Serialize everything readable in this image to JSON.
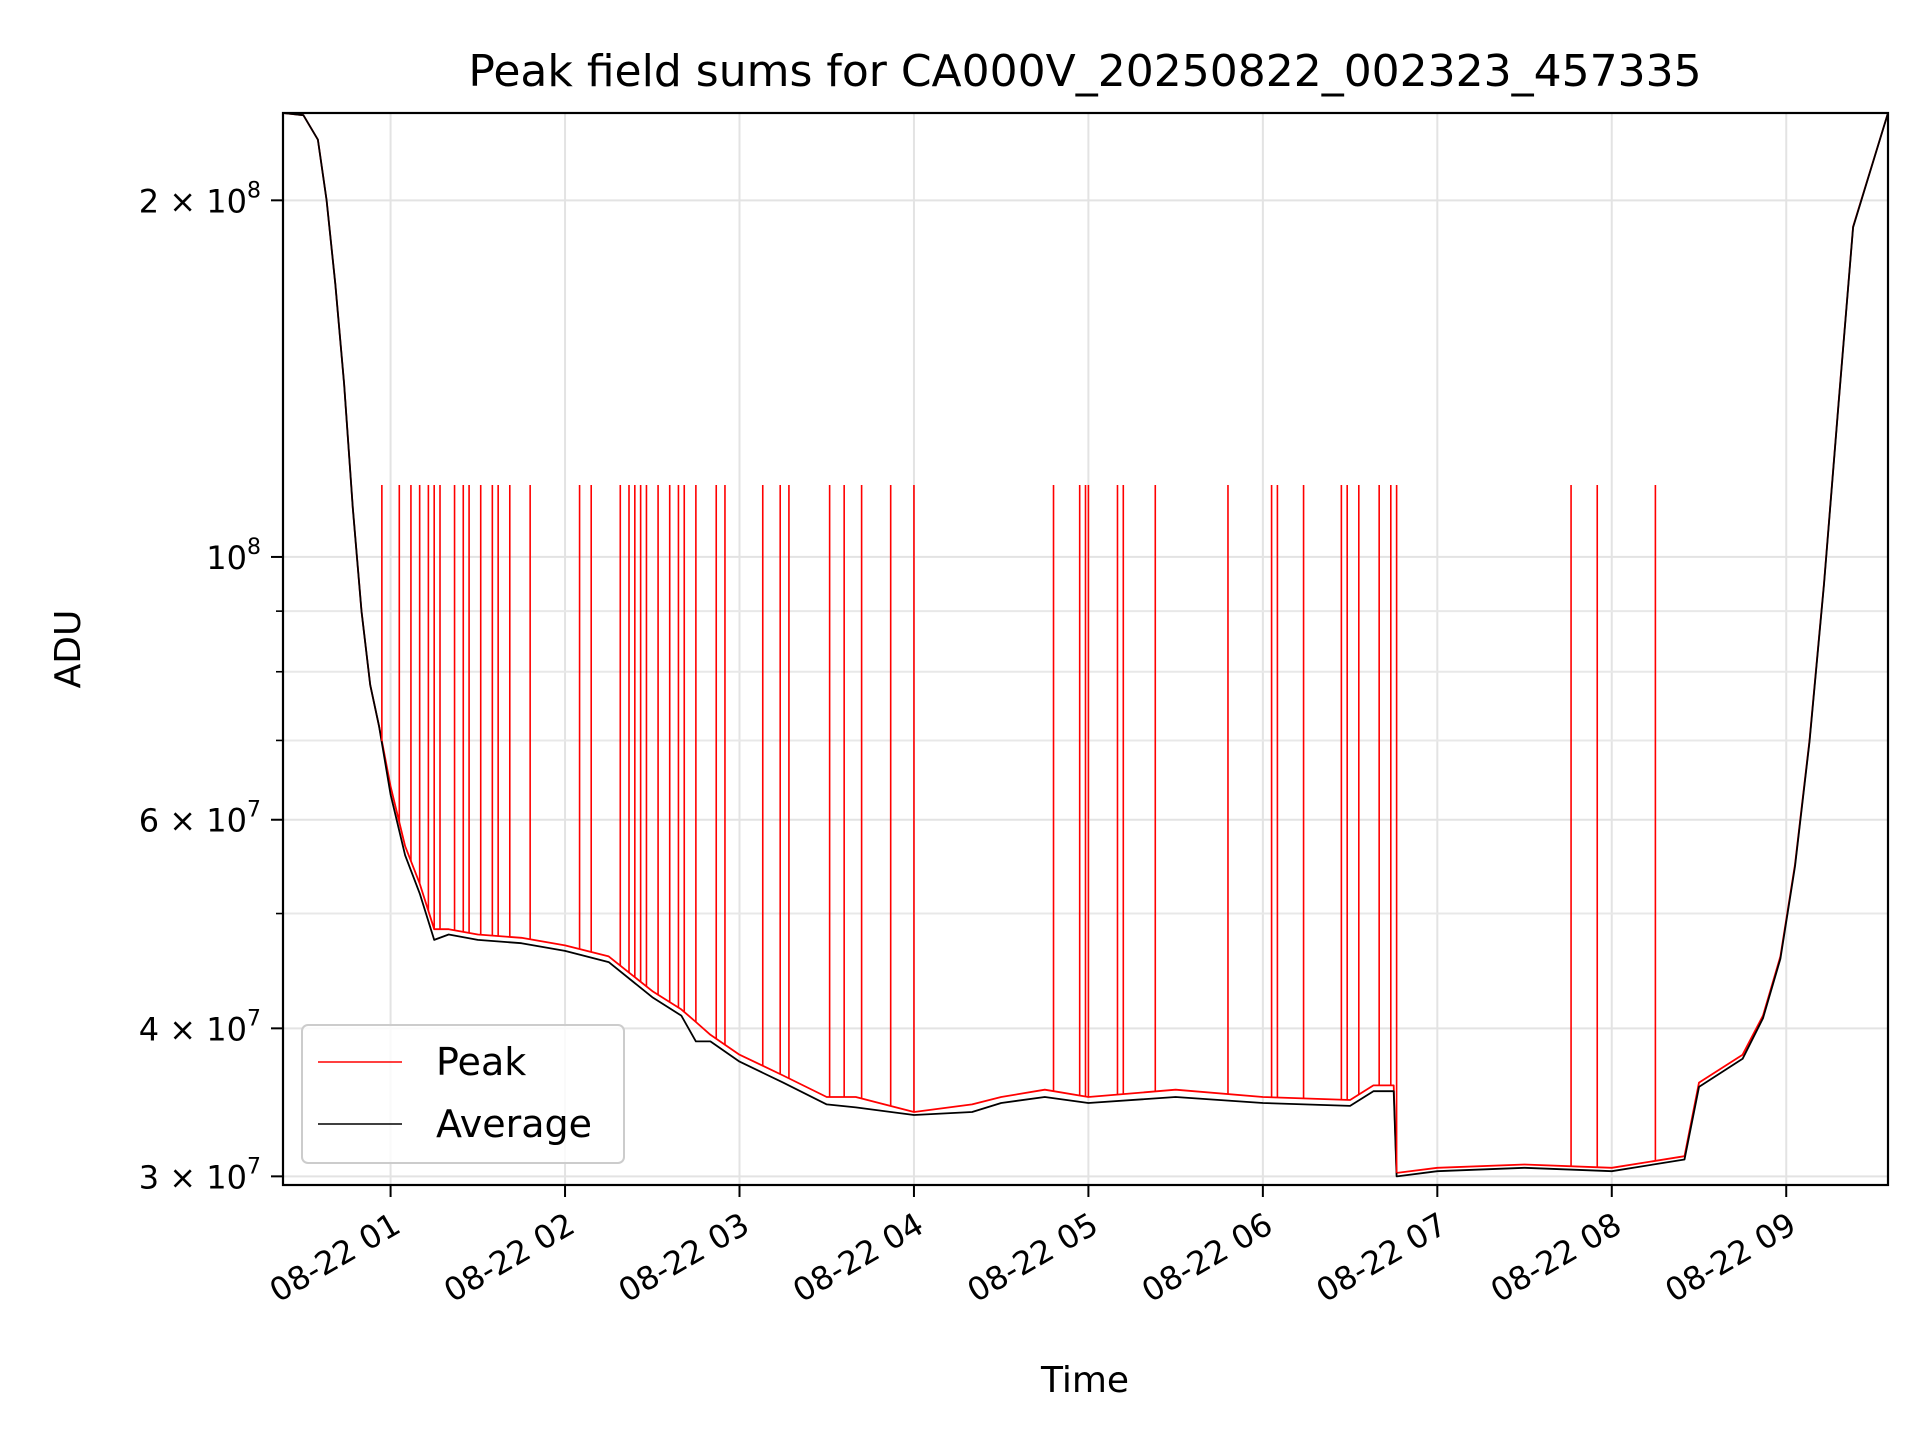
{
  "chart_data": {
    "type": "line",
    "title": "Peak field sums for CA000V_20250822_002323_457335",
    "xlabel": "Time",
    "ylabel": "ADU",
    "yscale": "log",
    "xlim": [
      "08-22 00:23",
      "08-22 09:35"
    ],
    "ylim": [
      29500000,
      237000000
    ],
    "grid": true,
    "legend": {
      "placement": "lower-left"
    },
    "x_ticks": [
      "08-22 01",
      "08-22 02",
      "08-22 03",
      "08-22 04",
      "08-22 05",
      "08-22 06",
      "08-22 07",
      "08-22 08",
      "08-22 09"
    ],
    "y_major_ticks": [
      {
        "value": 30000000,
        "mant": "3",
        "exp": "7"
      },
      {
        "value": 40000000,
        "mant": "4",
        "exp": "7"
      },
      {
        "value": 60000000,
        "mant": "6",
        "exp": "7"
      },
      {
        "value": 100000000,
        "mant": "",
        "exp": "8"
      },
      {
        "value": 200000000,
        "mant": "2",
        "exp": "8"
      }
    ],
    "y_minor_ticks": [
      50000000,
      70000000,
      80000000,
      90000000
    ],
    "series": [
      {
        "name": "Peak",
        "color": "#ff0000",
        "x": [
          "08-22 00:23",
          "08-22 00:30",
          "08-22 00:35",
          "08-22 00:38",
          "08-22 00:41",
          "08-22 00:44",
          "08-22 00:47",
          "08-22 00:50",
          "08-22 00:53",
          "08-22 00:56",
          "08-22 01:00",
          "08-22 01:05",
          "08-22 01:10",
          "08-22 01:15",
          "08-22 01:20",
          "08-22 01:30",
          "08-22 01:45",
          "08-22 02:00",
          "08-22 02:15",
          "08-22 02:30",
          "08-22 02:40",
          "08-22 02:45",
          "08-22 02:50",
          "08-22 03:00",
          "08-22 03:15",
          "08-22 03:30",
          "08-22 03:40",
          "08-22 04:00",
          "08-22 04:20",
          "08-22 04:30",
          "08-22 04:45",
          "08-22 05:00",
          "08-22 05:30",
          "08-22 06:00",
          "08-22 06:30",
          "08-22 06:38",
          "08-22 06:45",
          "08-22 06:46",
          "08-22 07:00",
          "08-22 07:30",
          "08-22 08:00",
          "08-22 08:25",
          "08-22 08:30",
          "08-22 08:45",
          "08-22 08:52",
          "08-22 08:58",
          "08-22 09:03",
          "08-22 09:08",
          "08-22 09:13",
          "08-22 09:18",
          "08-22 09:23",
          "08-22 09:35"
        ],
        "y": [
          237000000,
          236000000,
          225000000,
          200000000,
          170000000,
          140000000,
          110000000,
          90000000,
          78000000,
          72000000,
          64000000,
          57000000,
          53000000,
          48500000,
          48500000,
          48000000,
          47700000,
          47000000,
          46000000,
          43000000,
          41500000,
          40500000,
          39500000,
          38000000,
          36500000,
          35000000,
          35000000,
          34000000,
          34500000,
          35000000,
          35500000,
          35000000,
          35500000,
          35000000,
          34800000,
          35800000,
          35800000,
          30200000,
          30500000,
          30700000,
          30500000,
          31200000,
          36000000,
          38000000,
          41000000,
          46000000,
          55000000,
          70000000,
          95000000,
          135000000,
          190000000,
          237000000
        ]
      },
      {
        "name": "Average",
        "color": "#000000",
        "x": [
          "08-22 00:23",
          "08-22 00:30",
          "08-22 00:35",
          "08-22 00:38",
          "08-22 00:41",
          "08-22 00:44",
          "08-22 00:47",
          "08-22 00:50",
          "08-22 00:53",
          "08-22 00:56",
          "08-22 01:00",
          "08-22 01:05",
          "08-22 01:10",
          "08-22 01:15",
          "08-22 01:20",
          "08-22 01:30",
          "08-22 01:45",
          "08-22 02:00",
          "08-22 02:15",
          "08-22 02:30",
          "08-22 02:40",
          "08-22 02:45",
          "08-22 02:50",
          "08-22 03:00",
          "08-22 03:15",
          "08-22 03:30",
          "08-22 03:40",
          "08-22 04:00",
          "08-22 04:20",
          "08-22 04:30",
          "08-22 04:45",
          "08-22 05:00",
          "08-22 05:30",
          "08-22 06:00",
          "08-22 06:30",
          "08-22 06:38",
          "08-22 06:45",
          "08-22 06:46",
          "08-22 07:00",
          "08-22 07:30",
          "08-22 08:00",
          "08-22 08:25",
          "08-22 08:30",
          "08-22 08:45",
          "08-22 08:52",
          "08-22 08:58",
          "08-22 09:03",
          "08-22 09:08",
          "08-22 09:13",
          "08-22 09:18",
          "08-22 09:23",
          "08-22 09:35"
        ],
        "y": [
          237000000,
          236000000,
          225000000,
          200000000,
          170000000,
          140000000,
          110000000,
          90000000,
          78000000,
          72000000,
          63000000,
          56000000,
          52000000,
          47500000,
          48000000,
          47500000,
          47200000,
          46500000,
          45500000,
          42500000,
          41000000,
          39000000,
          39000000,
          37500000,
          36000000,
          34500000,
          34300000,
          33800000,
          34000000,
          34600000,
          35000000,
          34600000,
          35000000,
          34600000,
          34400000,
          35400000,
          35400000,
          30000000,
          30300000,
          30500000,
          30300000,
          31000000,
          35700000,
          37700000,
          40800000,
          45800000,
          54800000,
          69800000,
          94800000,
          134800000,
          189800000,
          237000000
        ]
      }
    ],
    "peak_spike_level": 115000000,
    "peak_spike_times": [
      "08-22 00:57",
      "08-22 01:03",
      "08-22 01:07",
      "08-22 01:10",
      "08-22 01:13",
      "08-22 01:15",
      "08-22 01:17",
      "08-22 01:22",
      "08-22 01:25",
      "08-22 01:27",
      "08-22 01:31",
      "08-22 01:35",
      "08-22 01:37",
      "08-22 01:41",
      "08-22 01:48",
      "08-22 02:05",
      "08-22 02:09",
      "08-22 02:19",
      "08-22 02:22",
      "08-22 02:24",
      "08-22 02:26",
      "08-22 02:28",
      "08-22 02:32",
      "08-22 02:36",
      "08-22 02:39",
      "08-22 02:41",
      "08-22 02:45",
      "08-22 02:52",
      "08-22 02:55",
      "08-22 03:08",
      "08-22 03:14",
      "08-22 03:17",
      "08-22 03:31",
      "08-22 03:36",
      "08-22 03:42",
      "08-22 03:52",
      "08-22 04:00",
      "08-22 04:48",
      "08-22 04:57",
      "08-22 04:59",
      "08-22 05:00",
      "08-22 05:10",
      "08-22 05:12",
      "08-22 05:23",
      "08-22 05:48",
      "08-22 06:03",
      "08-22 06:05",
      "08-22 06:14",
      "08-22 06:27",
      "08-22 06:29",
      "08-22 06:33",
      "08-22 06:40",
      "08-22 06:44",
      "08-22 06:46",
      "08-22 07:46",
      "08-22 07:55",
      "08-22 08:15"
    ]
  }
}
